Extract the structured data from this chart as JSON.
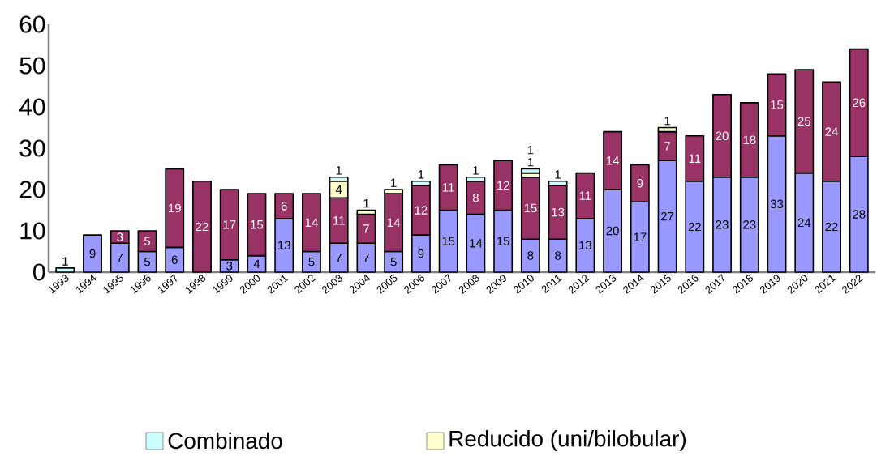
{
  "chart_data": {
    "type": "bar",
    "stacked": true,
    "data_labels": true,
    "legend": "bottom",
    "grid": false,
    "categories": [
      "1993",
      "1994",
      "1995",
      "1996",
      "1997",
      "1998",
      "1999",
      "2000",
      "2001",
      "2002",
      "2003",
      "2004",
      "2005",
      "2006",
      "2007",
      "2008",
      "2009",
      "2010",
      "2011",
      "2012",
      "2013",
      "2014",
      "2015",
      "2016",
      "2017",
      "2018",
      "2019",
      "2020",
      "2021",
      "2022"
    ],
    "ylim": [
      0,
      60
    ],
    "yticks": [
      0,
      10,
      20,
      30,
      40,
      50,
      60
    ],
    "series": [
      {
        "color": "#9999ff",
        "values": [
          null,
          9,
          7,
          5,
          6,
          null,
          3,
          4,
          13,
          5,
          7,
          7,
          5,
          9,
          15,
          14,
          15,
          8,
          8,
          13,
          20,
          17,
          27,
          22,
          23,
          23,
          33,
          24,
          22,
          28
        ]
      },
      {
        "color": "#993366",
        "values": [
          null,
          null,
          3,
          5,
          19,
          22,
          17,
          15,
          6,
          14,
          11,
          7,
          14,
          12,
          11,
          8,
          12,
          15,
          13,
          11,
          14,
          9,
          7,
          11,
          20,
          18,
          15,
          25,
          24,
          26
        ]
      },
      {
        "name": "Reducido (uni/bilobular)",
        "color": "#ffffcc",
        "values": [
          null,
          null,
          null,
          null,
          null,
          null,
          null,
          null,
          null,
          null,
          4,
          1,
          1,
          null,
          null,
          null,
          null,
          1,
          null,
          null,
          null,
          null,
          1,
          null,
          null,
          null,
          null,
          null,
          null,
          null
        ]
      },
      {
        "name": "Combinado",
        "color": "#ccffff",
        "values": [
          1,
          null,
          null,
          null,
          null,
          null,
          null,
          null,
          null,
          null,
          1,
          null,
          null,
          1,
          null,
          1,
          null,
          1,
          1,
          null,
          null,
          null,
          null,
          null,
          null,
          null,
          null,
          null,
          null,
          null
        ]
      }
    ]
  }
}
